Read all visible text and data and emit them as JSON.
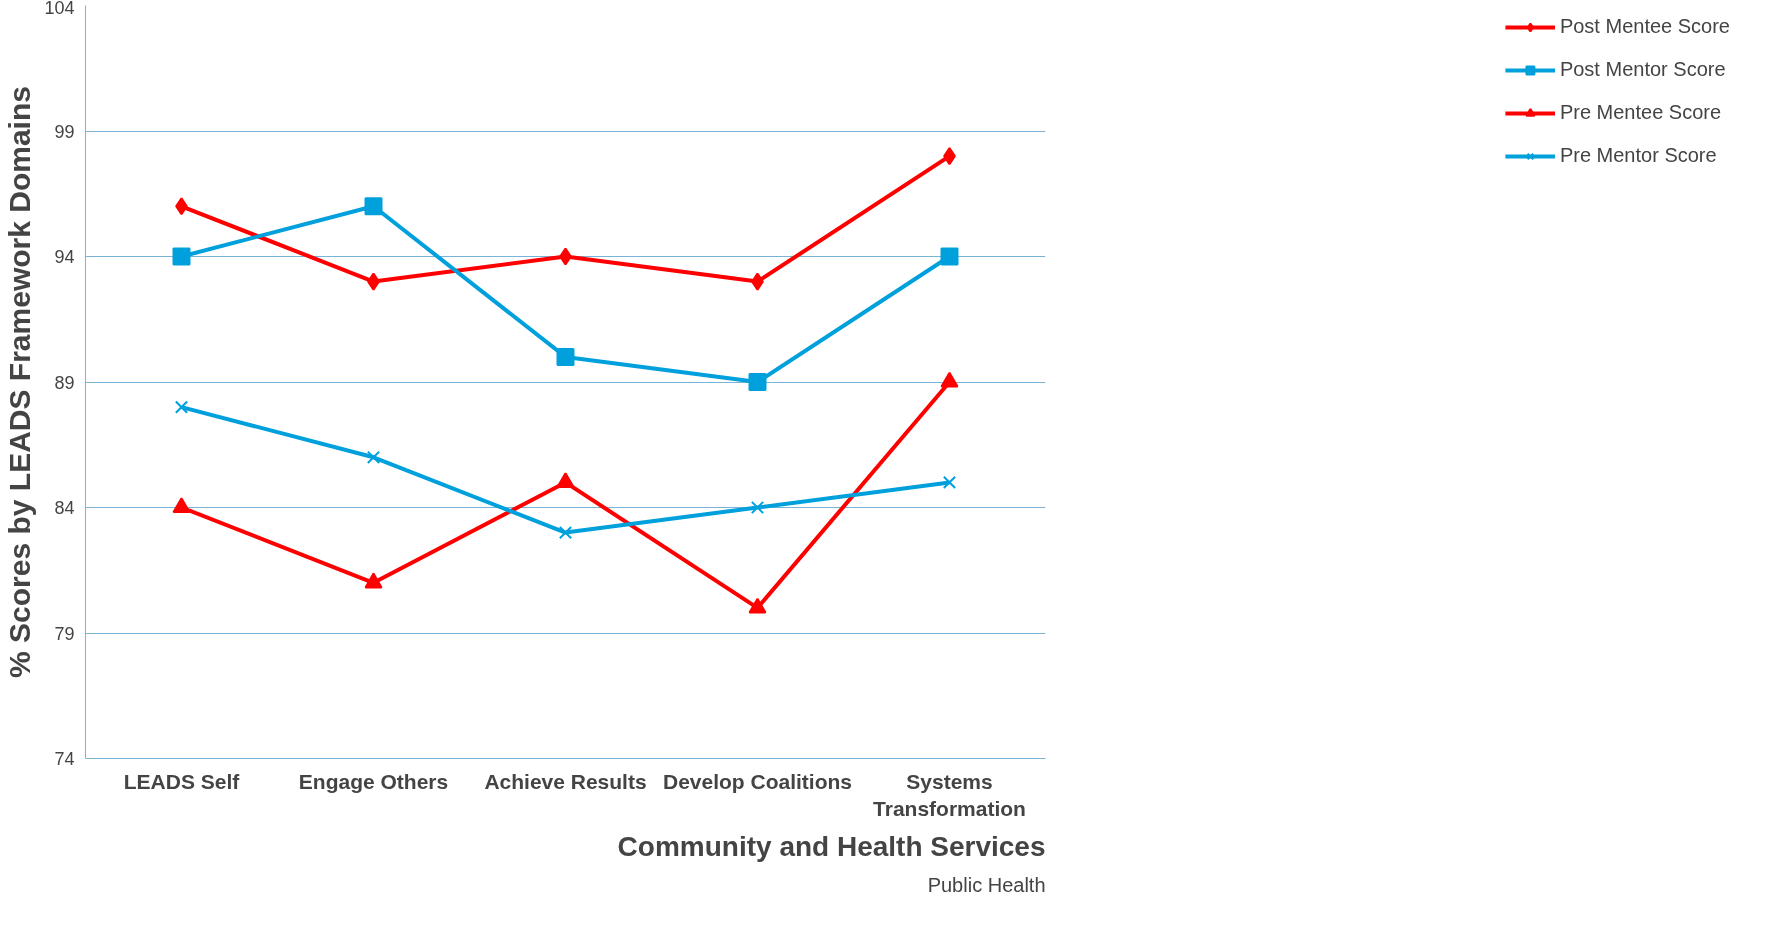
{
  "chart_data": {
    "type": "line",
    "ylabel": "% Scores by LEADS Framework Domains",
    "categories": [
      "LEADS Self",
      "Engage Others",
      "Achieve Results",
      "Develop Coalitions",
      "Systems Transformation"
    ],
    "series": [
      {
        "name": "Post Mentee Score",
        "color": "#ff0000",
        "marker": "diamond",
        "values": [
          96,
          93,
          94,
          93,
          98
        ]
      },
      {
        "name": "Post Mentor Score",
        "color": "#00a0dc",
        "marker": "square",
        "values": [
          94,
          96,
          90,
          89,
          94
        ]
      },
      {
        "name": "Pre Mentee Score",
        "color": "#ff0000",
        "marker": "triangle",
        "values": [
          84,
          81,
          85,
          80,
          89
        ]
      },
      {
        "name": "Pre Mentor Score",
        "color": "#00a0dc",
        "marker": "cross",
        "values": [
          88,
          86,
          83,
          84,
          85
        ]
      }
    ],
    "ylim": [
      74,
      104
    ],
    "yticks": [
      74,
      79,
      84,
      89,
      94,
      99,
      104
    ],
    "grid": "y",
    "legend": "right",
    "annotations": [
      "Community and Health Services",
      "Public Health"
    ]
  }
}
